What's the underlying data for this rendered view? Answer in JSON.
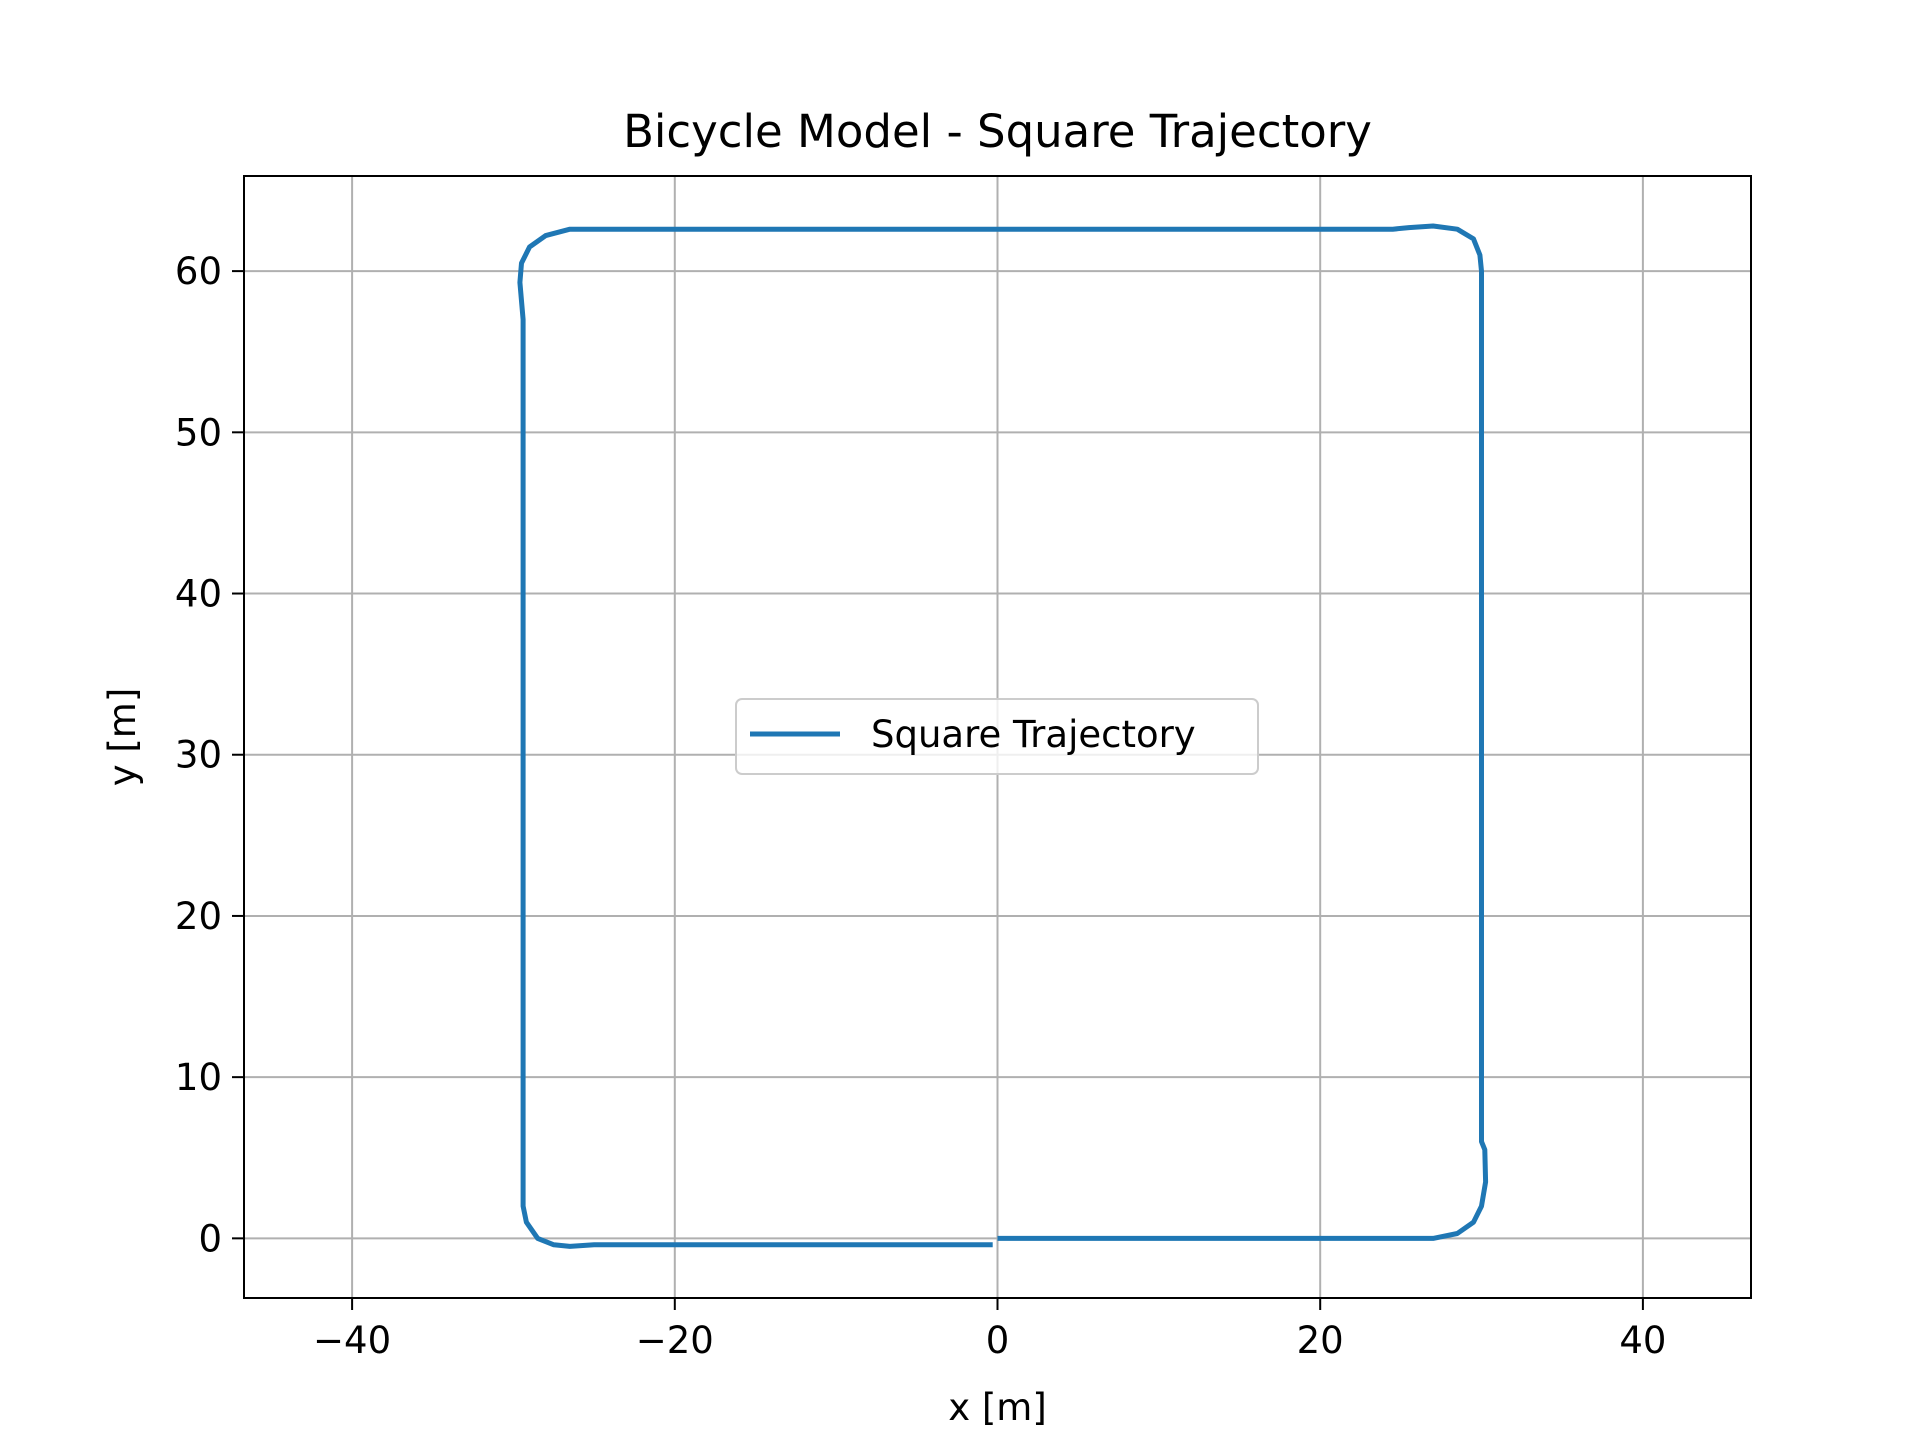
{
  "chart_data": {
    "type": "line",
    "title": "Bicycle Model - Square Trajectory",
    "xlabel": "x [m]",
    "ylabel": "y [m]",
    "xlim": [
      -46.7,
      46.7
    ],
    "ylim": [
      -3.7,
      65.9
    ],
    "xticks": [
      -40,
      -20,
      0,
      20,
      40
    ],
    "xtick_labels": [
      "−40",
      "−20",
      "0",
      "20",
      "40"
    ],
    "yticks": [
      0,
      10,
      20,
      30,
      40,
      50,
      60
    ],
    "ytick_labels": [
      "0",
      "10",
      "20",
      "30",
      "40",
      "50",
      "60"
    ],
    "grid": true,
    "legend_position": "center",
    "series": [
      {
        "name": "Square Trajectory",
        "color": "#1f77b4",
        "x": [
          0.0,
          5.0,
          10.0,
          15.0,
          20.0,
          25.0,
          27.0,
          28.5,
          29.5,
          30.0,
          30.25,
          30.2,
          30.0,
          30.0,
          30.0,
          30.0,
          30.0,
          30.0,
          30.0,
          30.0,
          30.0,
          30.0,
          29.9,
          29.5,
          28.5,
          27.0,
          25.5,
          24.5,
          20.0,
          15.0,
          10.0,
          5.0,
          0.0,
          -5.0,
          -10.0,
          -15.0,
          -20.0,
          -25.0,
          -26.5,
          -28.0,
          -29.0,
          -29.5,
          -29.6,
          -29.4,
          -29.4,
          -29.4,
          -29.4,
          -29.4,
          -29.4,
          -29.4,
          -29.4,
          -29.4,
          -29.4,
          -29.4,
          -29.2,
          -28.5,
          -27.5,
          -26.5,
          -25.0,
          -23.5,
          -20.0,
          -15.0,
          -10.0,
          -5.0,
          -0.3
        ],
        "y": [
          0.0,
          0.0,
          0.0,
          0.0,
          0.0,
          0.0,
          0.0,
          0.3,
          1.0,
          2.0,
          3.5,
          5.5,
          6.0,
          10.0,
          20.0,
          30.0,
          40.0,
          50.0,
          55.0,
          58.0,
          59.5,
          60.0,
          61.0,
          62.0,
          62.6,
          62.8,
          62.7,
          62.6,
          62.6,
          62.6,
          62.6,
          62.6,
          62.6,
          62.6,
          62.6,
          62.6,
          62.6,
          62.6,
          62.6,
          62.2,
          61.5,
          60.5,
          59.3,
          57.0,
          55.0,
          50.0,
          40.0,
          30.0,
          20.0,
          10.0,
          5.0,
          3.0,
          2.5,
          2.0,
          1.0,
          0.0,
          -0.4,
          -0.5,
          -0.4,
          -0.4,
          -0.4,
          -0.4,
          -0.4,
          -0.4,
          -0.4
        ]
      }
    ]
  }
}
